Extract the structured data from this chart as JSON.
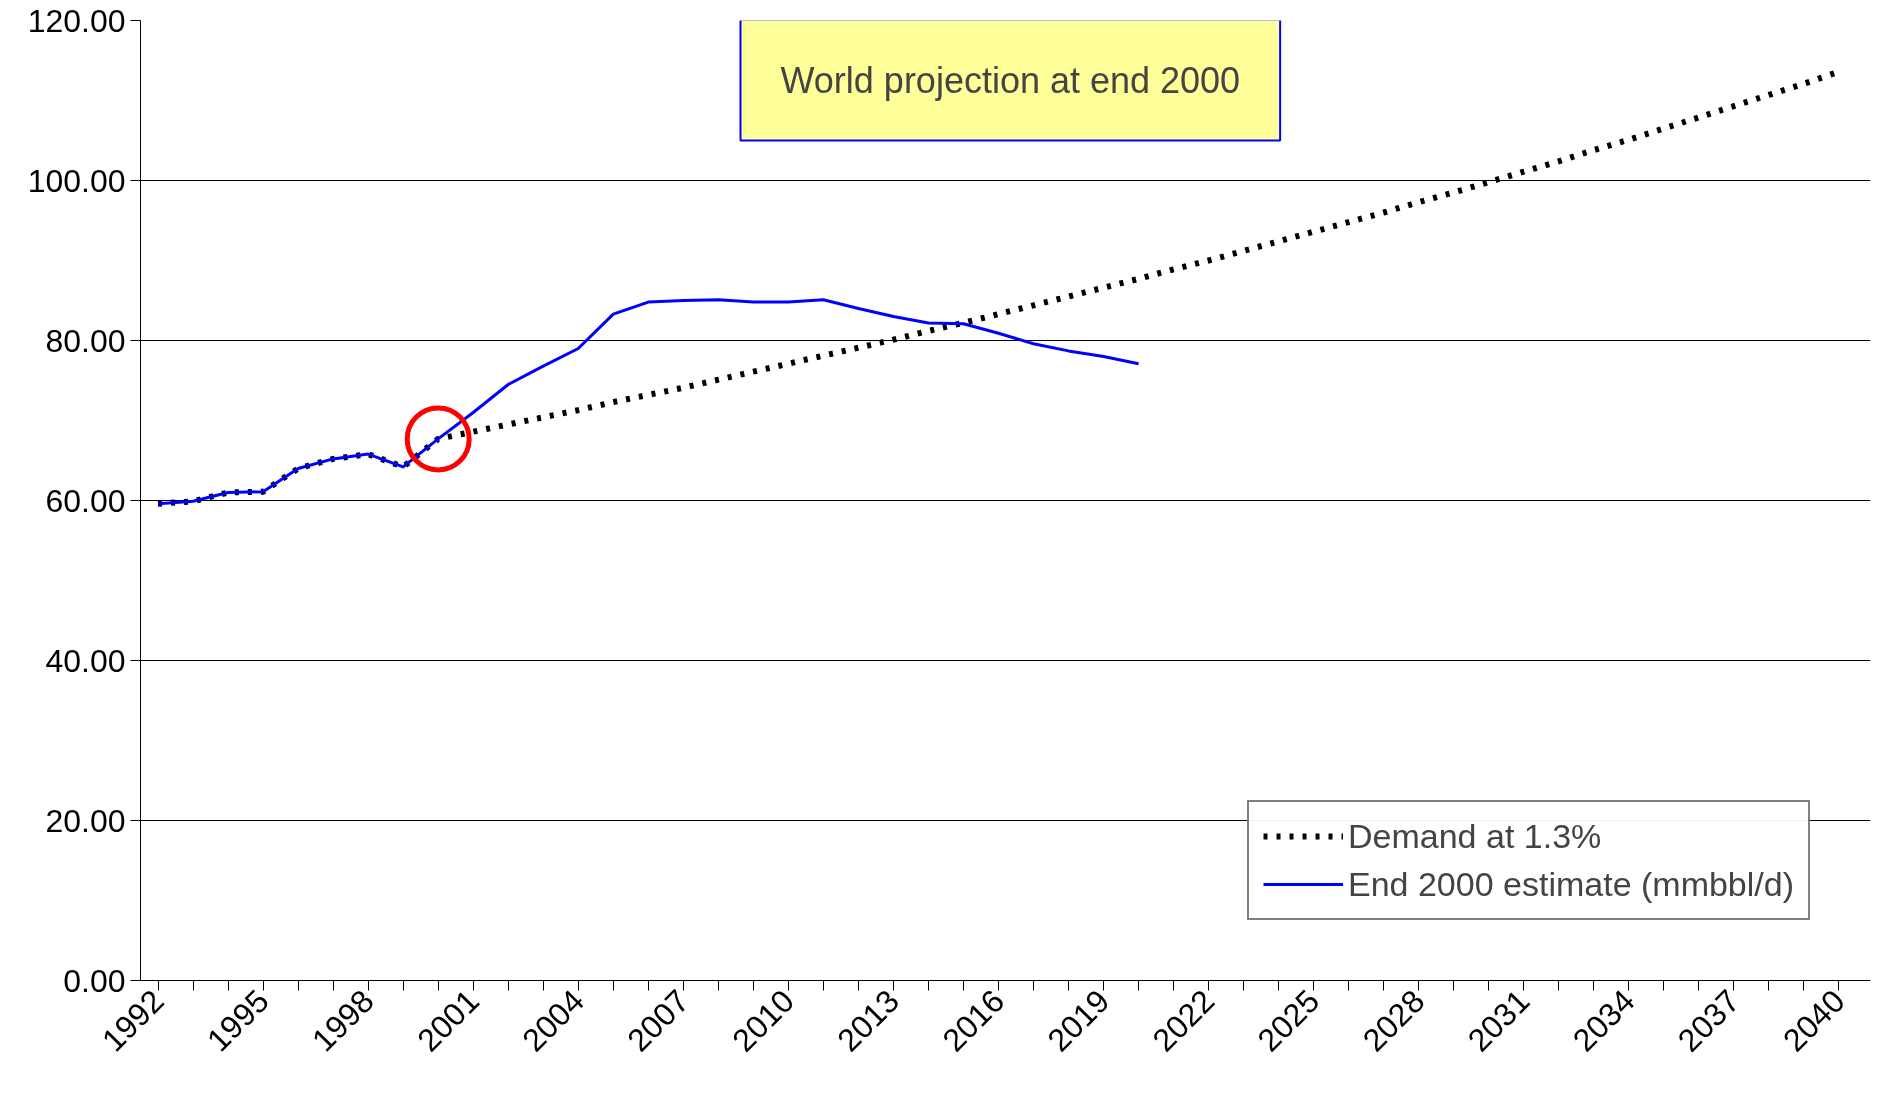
{
  "chart_data": {
    "type": "line",
    "title": "World projection at end 2000",
    "x": [
      1992,
      1993,
      1994,
      1995,
      1996,
      1997,
      1998,
      1999,
      2000,
      2001,
      2002,
      2003,
      2004,
      2005,
      2006,
      2007,
      2008,
      2009,
      2010,
      2011,
      2012,
      2013,
      2014,
      2015,
      2016,
      2017,
      2018,
      2019,
      2020,
      2021,
      2022,
      2023,
      2024,
      2025,
      2026,
      2027,
      2028,
      2029,
      2030,
      2031,
      2032,
      2033,
      2034,
      2035,
      2036,
      2037,
      2038,
      2039,
      2040
    ],
    "series": [
      {
        "name": "Demand at 1.3%",
        "color": "#000000",
        "line_style": "dotted",
        "values": [
          59.6,
          59.9,
          61.0,
          61.1,
          64.0,
          65.2,
          65.8,
          64.2,
          67.7,
          68.6,
          69.5,
          70.4,
          71.3,
          72.3,
          73.2,
          74.1,
          75.1,
          76.1,
          77.1,
          78.1,
          79.1,
          80.1,
          81.2,
          82.2,
          83.3,
          84.4,
          85.5,
          86.6,
          87.7,
          88.9,
          90.0,
          91.2,
          92.4,
          93.6,
          94.8,
          96.0,
          97.3,
          98.5,
          99.8,
          101.1,
          102.4,
          103.8,
          105.1,
          106.5,
          107.9,
          109.3,
          110.7,
          112.1,
          113.6
        ]
      },
      {
        "name": "End 2000 estimate (mmbbl/d)",
        "color": "#0000ff",
        "line_style": "solid",
        "values": [
          59.6,
          59.9,
          61.0,
          61.1,
          64.0,
          65.2,
          65.8,
          64.2,
          67.7,
          71.0,
          74.5,
          76.8,
          79.0,
          83.3,
          84.8,
          85.0,
          85.1,
          84.8,
          84.8,
          85.1,
          84.0,
          83.0,
          82.2,
          82.1,
          80.9,
          79.6,
          78.7,
          78.0,
          77.1,
          null,
          null,
          null,
          null,
          null,
          null,
          null,
          null,
          null,
          null,
          null,
          null,
          null,
          null,
          null,
          null,
          null,
          null,
          null,
          null
        ]
      }
    ],
    "xlim": [
      1991.5,
      2040.9
    ],
    "xticks": [
      1992,
      {
        "value": 1993,
        "label": null
      },
      {
        "value": 1994,
        "label": null
      },
      1995,
      {
        "value": 1996,
        "label": null
      },
      {
        "value": 1997,
        "label": null
      },
      1998,
      {
        "value": 1999,
        "label": null
      },
      {
        "value": 2000,
        "label": null
      },
      2001,
      {
        "value": 2002,
        "label": null
      },
      {
        "value": 2003,
        "label": null
      },
      2004,
      {
        "value": 2005,
        "label": null
      },
      {
        "value": 2006,
        "label": null
      },
      2007,
      {
        "value": 2008,
        "label": null
      },
      {
        "value": 2009,
        "label": null
      },
      2010,
      {
        "value": 2011,
        "label": null
      },
      {
        "value": 2012,
        "label": null
      },
      2013,
      {
        "value": 2014,
        "label": null
      },
      {
        "value": 2015,
        "label": null
      },
      2016,
      {
        "value": 2017,
        "label": null
      },
      {
        "value": 2018,
        "label": null
      },
      2019,
      {
        "value": 2020,
        "label": null
      },
      {
        "value": 2021,
        "label": null
      },
      2022,
      {
        "value": 2023,
        "label": null
      },
      {
        "value": 2024,
        "label": null
      },
      2025,
      {
        "value": 2026,
        "label": null
      },
      {
        "value": 2027,
        "label": null
      },
      2028,
      {
        "value": 2029,
        "label": null
      },
      {
        "value": 2030,
        "label": null
      },
      2031,
      {
        "value": 2032,
        "label": null
      },
      {
        "value": 2033,
        "label": null
      },
      2034,
      {
        "value": 2035,
        "label": null
      },
      {
        "value": 2036,
        "label": null
      },
      2037,
      {
        "value": 2038,
        "label": null
      },
      {
        "value": 2039,
        "label": null
      },
      2040
    ],
    "ylim": [
      0,
      120
    ],
    "yticks": [
      {
        "value": 0,
        "label": "0.00"
      },
      {
        "value": 20,
        "label": "20.00"
      },
      {
        "value": 40,
        "label": "40.00"
      },
      {
        "value": 60,
        "label": "60.00"
      },
      {
        "value": 80,
        "label": "80.00"
      },
      {
        "value": 100,
        "label": "100.00"
      },
      {
        "value": 120,
        "label": "120.00"
      }
    ],
    "grid": "y",
    "legend": "bottom right",
    "marker": "none"
  }
}
